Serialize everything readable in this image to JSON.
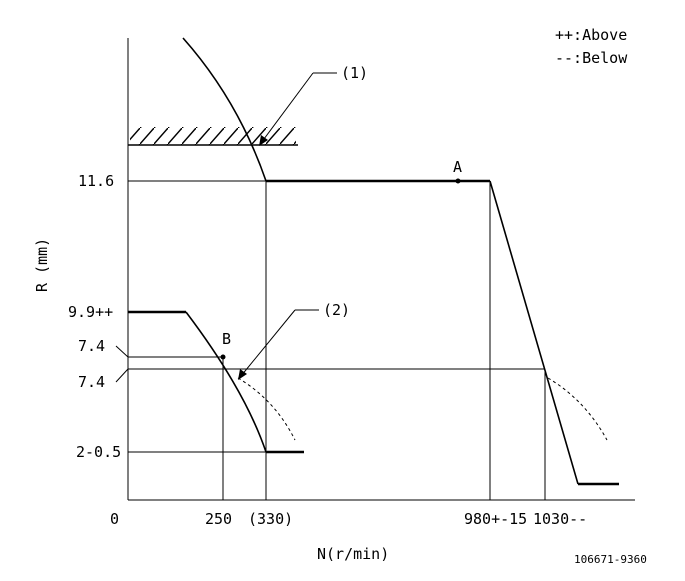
{
  "legend": {
    "above": "++:Above",
    "below": "--:Below"
  },
  "callouts": {
    "one": "(1)",
    "two": "(2)"
  },
  "points": {
    "a": "A",
    "b": "B"
  },
  "y_axis": {
    "label": "R (mm)",
    "ticks": {
      "r_11_6": "11.6",
      "r_9_9": "9.9++",
      "r_7_4_b": "7.4",
      "r_7_4_c": "7.4",
      "r_2": "2-0.5"
    }
  },
  "x_axis": {
    "label": "N(r/min)",
    "ticks": {
      "zero": "0",
      "n_250": "250",
      "n_330": "(330)",
      "n_980": "980+-15",
      "n_1030": "1030--"
    }
  },
  "drawing_number": "106671-9360"
}
